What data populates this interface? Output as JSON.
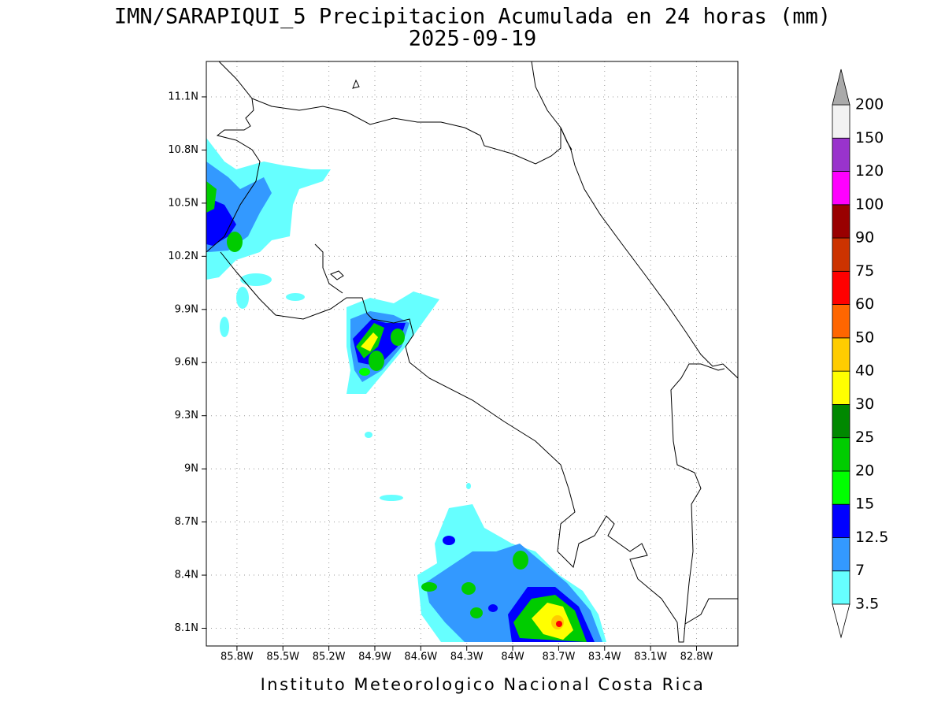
{
  "title": "IMN/SARAPIQUI_5 Precipitacion Acumulada en 24 horas (mm)",
  "subtitle": "2025-09-19",
  "map": {
    "lon_range": [
      -86.0,
      -82.53
    ],
    "lat_range": [
      8.0,
      11.3
    ],
    "x_ticks": [
      {
        "value": -85.8,
        "label": "85.8W"
      },
      {
        "value": -85.5,
        "label": "85.5W"
      },
      {
        "value": -85.2,
        "label": "85.2W"
      },
      {
        "value": -84.9,
        "label": "84.9W"
      },
      {
        "value": -84.6,
        "label": "84.6W"
      },
      {
        "value": -84.3,
        "label": "84.3W"
      },
      {
        "value": -84.0,
        "label": "84W"
      },
      {
        "value": -83.7,
        "label": "83.7W"
      },
      {
        "value": -83.4,
        "label": "83.4W"
      },
      {
        "value": -83.1,
        "label": "83.1W"
      },
      {
        "value": -82.8,
        "label": "82.8W"
      }
    ],
    "y_ticks": [
      {
        "value": 8.1,
        "label": "8.1N"
      },
      {
        "value": 8.4,
        "label": "8.4N"
      },
      {
        "value": 8.7,
        "label": "8.7N"
      },
      {
        "value": 9.0,
        "label": "9N"
      },
      {
        "value": 9.3,
        "label": "9.3N"
      },
      {
        "value": 9.6,
        "label": "9.6N"
      },
      {
        "value": 9.9,
        "label": "9.9N"
      },
      {
        "value": 10.2,
        "label": "10.2N"
      },
      {
        "value": 10.5,
        "label": "10.5N"
      },
      {
        "value": 10.8,
        "label": "10.8N"
      },
      {
        "value": 11.1,
        "label": "11.1N"
      }
    ],
    "grid": true
  },
  "colorbar": {
    "levels": [
      3.5,
      7,
      12.5,
      15,
      20,
      25,
      30,
      40,
      50,
      60,
      75,
      90,
      100,
      120,
      150,
      200
    ],
    "colors": [
      "#66ffff",
      "#3399ff",
      "#0000ff",
      "#00ff00",
      "#00cc00",
      "#008800",
      "#ffff00",
      "#ffcc00",
      "#ff6600",
      "#ff0000",
      "#cc3300",
      "#990000",
      "#ff00ff",
      "#9933cc",
      "#f2f2f2"
    ],
    "under_color": "#ffffff",
    "over_color": "#aaaaaa"
  },
  "footer": "Instituto Meteorologico Nacional Costa Rica"
}
